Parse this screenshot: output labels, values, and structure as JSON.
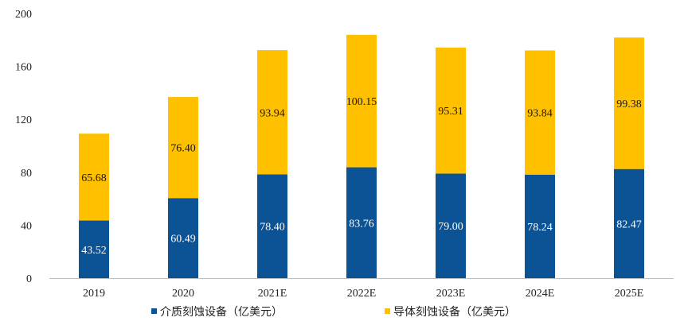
{
  "chart_data": {
    "type": "bar",
    "stacked": true,
    "categories": [
      "2019",
      "2020",
      "2021E",
      "2022E",
      "2023E",
      "2024E",
      "2025E"
    ],
    "series": [
      {
        "name": "介质刻蚀设备（亿美元）",
        "values": [
          43.52,
          60.49,
          78.4,
          83.76,
          79.0,
          78.24,
          82.47
        ],
        "color": "#0b5394",
        "label_color": "#ffffff"
      },
      {
        "name": "导体刻蚀设备（亿美元）",
        "values": [
          65.68,
          76.4,
          93.94,
          100.15,
          95.31,
          93.84,
          99.38
        ],
        "color": "#ffc000",
        "label_color": "#1a1a1a"
      }
    ],
    "data_labels": [
      [
        "43.52",
        "60.49",
        "78.40",
        "83.76",
        "79.00",
        "78.24",
        "82.47"
      ],
      [
        "65.68",
        "76.40",
        "93.94",
        "100.15",
        "95.31",
        "93.84",
        "99.38"
      ]
    ],
    "y_ticks": [
      "0",
      "40",
      "80",
      "120",
      "160",
      "200"
    ],
    "ylim": [
      0,
      200
    ],
    "title": "",
    "xlabel": "",
    "ylabel": "",
    "grid": false,
    "legend_position": "bottom"
  }
}
